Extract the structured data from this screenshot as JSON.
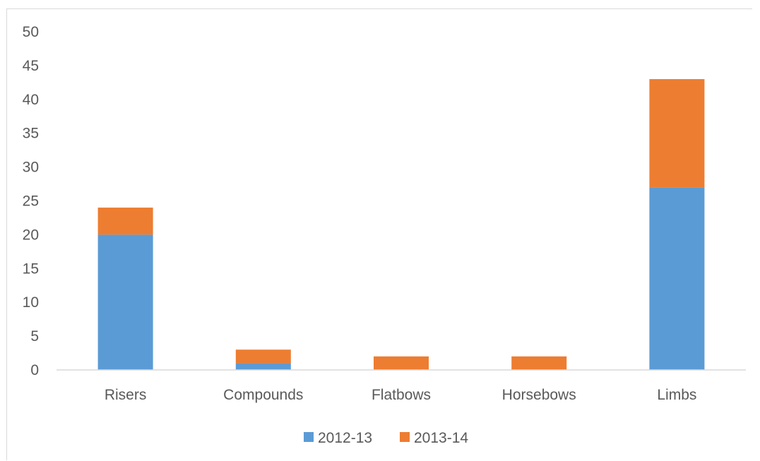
{
  "chart_data": {
    "type": "bar",
    "stacked": true,
    "title": "",
    "xlabel": "",
    "ylabel": "",
    "categories": [
      "Risers",
      "Compounds",
      "Flatbows",
      "Horsebows",
      "Limbs"
    ],
    "series": [
      {
        "name": "2012-13",
        "color": "#5b9bd5",
        "values": [
          20,
          1,
          0,
          0,
          27
        ]
      },
      {
        "name": "2013-14",
        "color": "#ed7d31",
        "values": [
          4,
          2,
          2,
          2,
          16
        ]
      }
    ],
    "ylim": [
      0,
      50
    ],
    "yticks": [
      "0",
      "5",
      "10",
      "15",
      "20",
      "25",
      "30",
      "35",
      "40",
      "45",
      "50"
    ],
    "grid": false,
    "legend_position": "bottom"
  }
}
